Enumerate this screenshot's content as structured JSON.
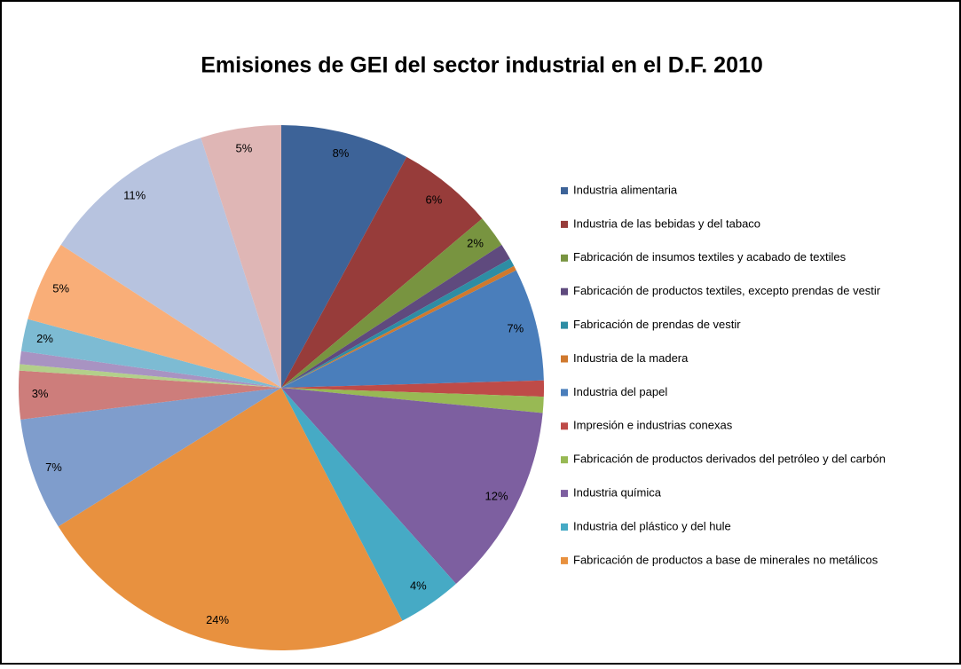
{
  "chart_data": {
    "type": "pie",
    "title": "Emisiones de GEI del sector industrial en el D.F. 2010",
    "categories": [
      "Industria alimentaria",
      "Industria de las bebidas y del tabaco",
      "Fabricación de insumos textiles y acabado de textiles",
      "Fabricación de productos textiles, excepto prendas de vestir",
      "Fabricación de prendas de vestir",
      "Industria de la madera",
      "Industria del papel",
      "Impresión e industrias conexas",
      "Fabricación de productos derivados del petróleo y del carbón",
      "Industria química",
      "Industria del plástico y del hule",
      "Fabricación de productos a base de minerales no metálicos",
      null,
      null,
      null,
      null,
      null,
      null,
      null,
      null
    ],
    "values": [
      8,
      6,
      2,
      1,
      0.5,
      0.3,
      7,
      1,
      1,
      12,
      4,
      24,
      7,
      3,
      0.4,
      0.8,
      2,
      5,
      11,
      5
    ],
    "value_labels": [
      "8%",
      "6%",
      "2%",
      null,
      null,
      null,
      "7%",
      null,
      null,
      "12%",
      "4%",
      "24%",
      "7%",
      "3%",
      null,
      null,
      "2%",
      "5%",
      "11%",
      "5%"
    ],
    "colors": [
      "#3D6398",
      "#973C3A",
      "#789440",
      "#5F4A7E",
      "#2E8DA4",
      "#D0792E",
      "#4A7EBB",
      "#BE4B48",
      "#98B954",
      "#7D5FA0",
      "#46AAC5",
      "#E8913F",
      "#7F9DCC",
      "#CD7D7B",
      "#B3CF8A",
      "#A893C2",
      "#7DBBD3",
      "#F9AE78",
      "#B7C3DF",
      "#DFB6B5"
    ],
    "legend": "right"
  }
}
